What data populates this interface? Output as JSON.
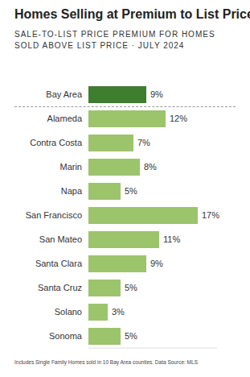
{
  "chart_data": {
    "type": "bar",
    "orientation": "horizontal",
    "title": "Homes Selling at Premium to List Price",
    "subtitle": "SALE-TO-LIST PRICE PREMIUM FOR HOMES SOLD ABOVE LIST PRICE · JULY 2024",
    "note": "Includes Single Family Homes sold in 10 Bay Area counties. Data Source: MLS",
    "categories": [
      "Bay Area",
      "Alameda",
      "Contra Costa",
      "Marin",
      "Napa",
      "San Francisco",
      "San Mateo",
      "Santa Clara",
      "Santa Cruz",
      "Solano",
      "Sonoma"
    ],
    "values": [
      9,
      12,
      7,
      8,
      5,
      17,
      11,
      9,
      5,
      3,
      5
    ],
    "value_labels": [
      "9%",
      "12%",
      "7%",
      "8%",
      "5%",
      "17%",
      "11%",
      "9%",
      "5%",
      "3%",
      "5%"
    ],
    "colors": [
      "#3f7d2f",
      "#9cc46b",
      "#9cc46b",
      "#9cc46b",
      "#9cc46b",
      "#9cc46b",
      "#9cc46b",
      "#9cc46b",
      "#9cc46b",
      "#9cc46b",
      "#9cc46b"
    ],
    "xlim": [
      0,
      20
    ],
    "data_labels": true,
    "tick_labels": "y",
    "grid": false
  }
}
